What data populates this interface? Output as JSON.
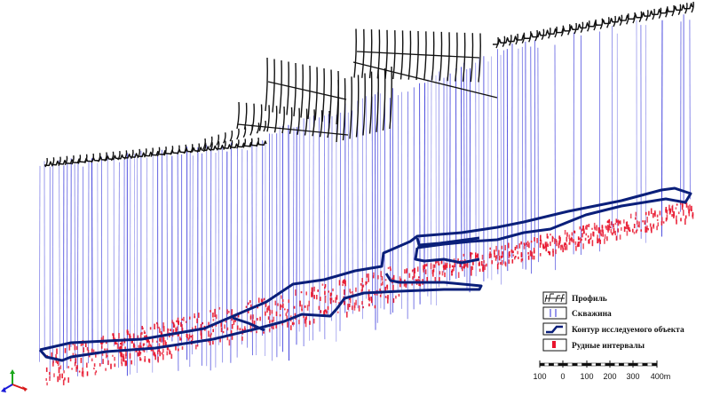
{
  "legend": {
    "items": [
      {
        "symbol": "profile-icon",
        "label": "Профиль"
      },
      {
        "symbol": "borehole-icon",
        "label": "Скважина"
      },
      {
        "symbol": "contour-icon",
        "label": "Контур исследуемого объекта"
      },
      {
        "symbol": "ore-interval-icon",
        "label": "Рудные интервалы"
      }
    ]
  },
  "scale_bar": {
    "ticks": [
      "100",
      "0",
      "100",
      "200",
      "300",
      "400m"
    ]
  },
  "axis_indicator": {
    "symbol": "xyz-axes-icon"
  },
  "colors": {
    "borehole": "#2b2bd8",
    "profile": "#111111",
    "contour": "#0a1f7a",
    "ore": "#e8142c"
  }
}
